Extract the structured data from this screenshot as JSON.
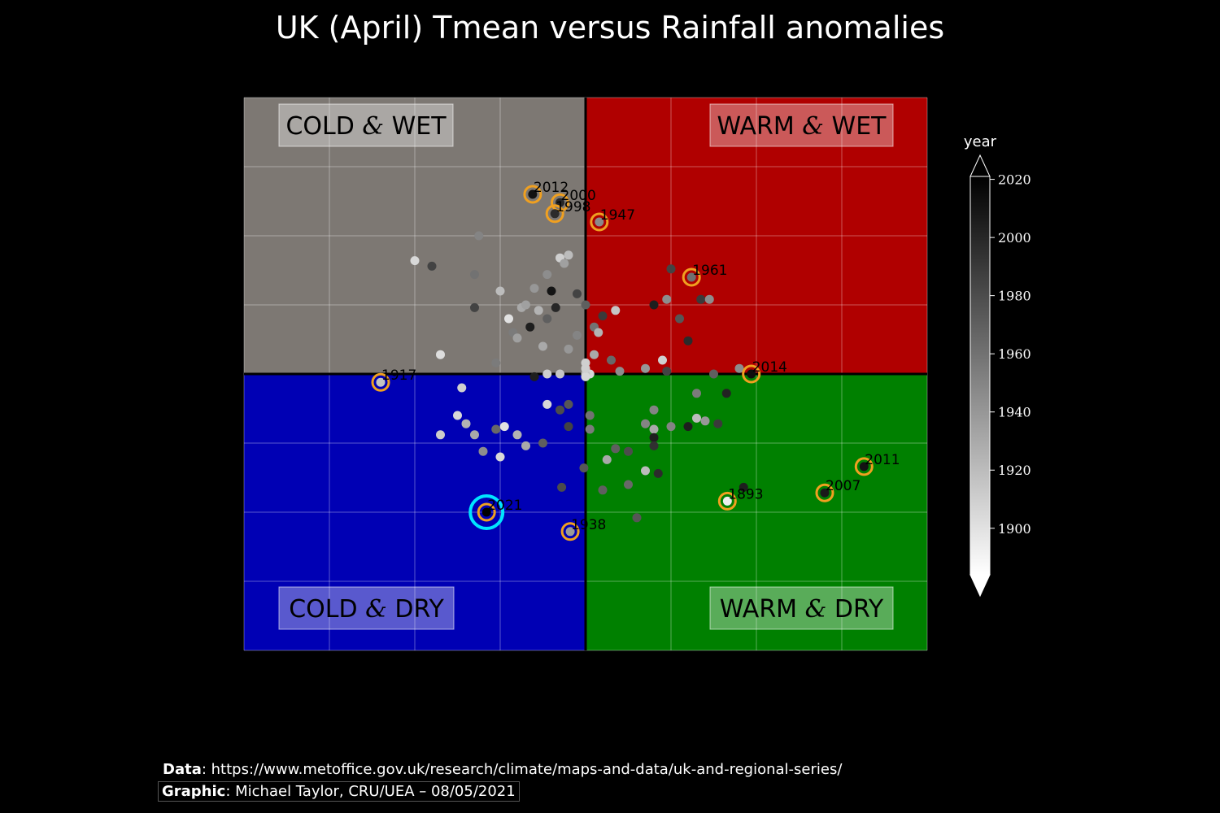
{
  "title": "UK (April) Tmean versus Rainfall anomalies",
  "quadrants": {
    "cold_wet": {
      "a": "COLD",
      "amp": "&",
      "b": "WET",
      "color": "#7d7873"
    },
    "warm_wet": {
      "a": "WARM",
      "amp": "&",
      "b": "WET",
      "color": "#b00000"
    },
    "cold_dry": {
      "a": "COLD",
      "amp": "&",
      "b": "DRY",
      "color": "#0000b4"
    },
    "warm_dry": {
      "a": "WARM",
      "amp": "&",
      "b": "DRY",
      "color": "#008000"
    }
  },
  "colorbar": {
    "label": "year",
    "ticks": [
      "2020",
      "2000",
      "1980",
      "1960",
      "1940",
      "1920",
      "1900"
    ],
    "range": [
      1884,
      2021
    ]
  },
  "footer": {
    "data_label": "Data",
    "data_text": ": https://www.metoffice.gov.uk/research/climate/maps-and-data/uk-and-regional-series/",
    "graphic_label": "Graphic",
    "graphic_text": ": Michael Taylor, CRU/UEA – 08/05/2021"
  },
  "chart_data": {
    "type": "scatter",
    "x_range": [
      -4,
      4
    ],
    "y_range": [
      -1,
      1
    ],
    "grid": true,
    "highlight_color": "#f0a020",
    "current_color": "#00e5ff",
    "labeled_points": [
      {
        "label": "2012",
        "x": -0.62,
        "y": 0.65,
        "year": 2012
      },
      {
        "label": "2000",
        "x": -0.3,
        "y": 0.62,
        "year": 2000
      },
      {
        "label": "1998",
        "x": -0.36,
        "y": 0.58,
        "year": 1998
      },
      {
        "label": "1947",
        "x": 0.16,
        "y": 0.55,
        "year": 1947
      },
      {
        "label": "1961",
        "x": 1.24,
        "y": 0.35,
        "year": 1961
      },
      {
        "label": "2014",
        "x": 1.94,
        "y": 0.0,
        "year": 2014
      },
      {
        "label": "1917",
        "x": -2.4,
        "y": -0.03,
        "year": 1917
      },
      {
        "label": "2011",
        "x": 3.26,
        "y": -0.335,
        "year": 2011
      },
      {
        "label": "2007",
        "x": 2.8,
        "y": -0.43,
        "year": 2007
      },
      {
        "label": "1893",
        "x": 1.66,
        "y": -0.46,
        "year": 1893
      },
      {
        "label": "1938",
        "x": -0.18,
        "y": -0.57,
        "year": 1938
      },
      {
        "label": "2021",
        "x": -1.16,
        "y": -0.5,
        "year": 2021,
        "current": true
      }
    ],
    "points": [
      {
        "x": -2.0,
        "y": 0.41,
        "year": 1905
      },
      {
        "x": -1.8,
        "y": 0.39,
        "year": 1985
      },
      {
        "x": -1.7,
        "y": 0.07,
        "year": 1902
      },
      {
        "x": -1.3,
        "y": 0.36,
        "year": 1960
      },
      {
        "x": -1.3,
        "y": 0.24,
        "year": 1985
      },
      {
        "x": -1.25,
        "y": 0.5,
        "year": 1950
      },
      {
        "x": -1.0,
        "y": 0.3,
        "year": 1920
      },
      {
        "x": -1.05,
        "y": 0.04,
        "year": 1955
      },
      {
        "x": -0.9,
        "y": 0.2,
        "year": 1900
      },
      {
        "x": -0.85,
        "y": 0.15,
        "year": 1955
      },
      {
        "x": -0.8,
        "y": 0.13,
        "year": 1935
      },
      {
        "x": -0.75,
        "y": 0.24,
        "year": 1930
      },
      {
        "x": -0.7,
        "y": 0.25,
        "year": 1935
      },
      {
        "x": -0.6,
        "y": 0.31,
        "year": 1940
      },
      {
        "x": -0.55,
        "y": 0.23,
        "year": 1925
      },
      {
        "x": -0.45,
        "y": 0.2,
        "year": 1970
      },
      {
        "x": -0.4,
        "y": 0.3,
        "year": 2010
      },
      {
        "x": -0.45,
        "y": 0.36,
        "year": 1945
      },
      {
        "x": -0.3,
        "y": 0.42,
        "year": 1910
      },
      {
        "x": -0.25,
        "y": 0.4,
        "year": 1935
      },
      {
        "x": -0.2,
        "y": 0.43,
        "year": 1920
      },
      {
        "x": -0.1,
        "y": 0.29,
        "year": 1985
      },
      {
        "x": 0.0,
        "y": 0.25,
        "year": 1970
      },
      {
        "x": -0.1,
        "y": 0.14,
        "year": 1950
      },
      {
        "x": 0.1,
        "y": 0.17,
        "year": 1960
      },
      {
        "x": 0.15,
        "y": 0.15,
        "year": 1925
      },
      {
        "x": 0.2,
        "y": 0.21,
        "year": 1990
      },
      {
        "x": 0.35,
        "y": 0.23,
        "year": 1915
      },
      {
        "x": 0.3,
        "y": 0.05,
        "year": 1965
      },
      {
        "x": 0.4,
        "y": 0.01,
        "year": 1945
      },
      {
        "x": 0.0,
        "y": 0.04,
        "year": 1910
      },
      {
        "x": 0.05,
        "y": 0.0,
        "year": 1905
      },
      {
        "x": 0.7,
        "y": 0.02,
        "year": 1940
      },
      {
        "x": 0.9,
        "y": 0.05,
        "year": 1910
      },
      {
        "x": 0.95,
        "y": 0.01,
        "year": 1985
      },
      {
        "x": 1.1,
        "y": 0.2,
        "year": 1975
      },
      {
        "x": 1.2,
        "y": 0.12,
        "year": 1998
      },
      {
        "x": 1.35,
        "y": 0.27,
        "year": 1990
      },
      {
        "x": 1.45,
        "y": 0.27,
        "year": 1945
      },
      {
        "x": 0.8,
        "y": 0.25,
        "year": 2005
      },
      {
        "x": 0.95,
        "y": 0.27,
        "year": 1945
      },
      {
        "x": 1.0,
        "y": 0.38,
        "year": 1985
      },
      {
        "x": -0.65,
        "y": 0.17,
        "year": 2005
      },
      {
        "x": -0.35,
        "y": 0.24,
        "year": 2000
      },
      {
        "x": -0.5,
        "y": 0.1,
        "year": 1930
      },
      {
        "x": -0.3,
        "y": 0.0,
        "year": 1915
      },
      {
        "x": -0.2,
        "y": 0.09,
        "year": 1940
      },
      {
        "x": 0.1,
        "y": 0.07,
        "year": 1930
      },
      {
        "x": -1.45,
        "y": -0.05,
        "year": 1910
      },
      {
        "x": -1.4,
        "y": -0.18,
        "year": 1925
      },
      {
        "x": -1.3,
        "y": -0.22,
        "year": 1930
      },
      {
        "x": -1.2,
        "y": -0.28,
        "year": 1945
      },
      {
        "x": -1.05,
        "y": -0.2,
        "year": 1965
      },
      {
        "x": -0.95,
        "y": -0.19,
        "year": 1900
      },
      {
        "x": -0.8,
        "y": -0.22,
        "year": 1925
      },
      {
        "x": -0.7,
        "y": -0.26,
        "year": 1930
      },
      {
        "x": -0.5,
        "y": -0.25,
        "year": 1970
      },
      {
        "x": -0.6,
        "y": -0.01,
        "year": 2005
      },
      {
        "x": -0.45,
        "y": 0.0,
        "year": 1910
      },
      {
        "x": -0.45,
        "y": -0.11,
        "year": 1905
      },
      {
        "x": -0.3,
        "y": -0.13,
        "year": 1980
      },
      {
        "x": -0.2,
        "y": -0.11,
        "year": 1975
      },
      {
        "x": -0.2,
        "y": -0.19,
        "year": 1985
      },
      {
        "x": -0.28,
        "y": -0.41,
        "year": 1980
      },
      {
        "x": -0.02,
        "y": -0.34,
        "year": 1975
      },
      {
        "x": -1.7,
        "y": -0.22,
        "year": 1912
      },
      {
        "x": -1.5,
        "y": -0.15,
        "year": 1905
      },
      {
        "x": -1.0,
        "y": -0.3,
        "year": 1905
      },
      {
        "x": 0.25,
        "y": -0.31,
        "year": 1930
      },
      {
        "x": 0.2,
        "y": -0.42,
        "year": 1970
      },
      {
        "x": 0.5,
        "y": -0.28,
        "year": 1980
      },
      {
        "x": 0.5,
        "y": -0.4,
        "year": 1965
      },
      {
        "x": 0.6,
        "y": -0.52,
        "year": 1975
      },
      {
        "x": 0.7,
        "y": -0.35,
        "year": 1920
      },
      {
        "x": 0.85,
        "y": -0.36,
        "year": 1998
      },
      {
        "x": 0.7,
        "y": -0.18,
        "year": 1950
      },
      {
        "x": 0.8,
        "y": -0.2,
        "year": 1930
      },
      {
        "x": 0.8,
        "y": -0.23,
        "year": 2005
      },
      {
        "x": 0.8,
        "y": -0.26,
        "year": 1995
      },
      {
        "x": 0.8,
        "y": -0.13,
        "year": 1950
      },
      {
        "x": 1.0,
        "y": -0.19,
        "year": 1950
      },
      {
        "x": 1.2,
        "y": -0.19,
        "year": 2005
      },
      {
        "x": 1.3,
        "y": -0.16,
        "year": 1920
      },
      {
        "x": 1.4,
        "y": -0.17,
        "year": 1940
      },
      {
        "x": 1.3,
        "y": -0.07,
        "year": 1955
      },
      {
        "x": 1.65,
        "y": -0.07,
        "year": 2003
      },
      {
        "x": 1.55,
        "y": -0.18,
        "year": 1990
      },
      {
        "x": 1.85,
        "y": -0.41,
        "year": 2005
      },
      {
        "x": 1.5,
        "y": 0.0,
        "year": 1970
      },
      {
        "x": 1.8,
        "y": 0.02,
        "year": 1945
      },
      {
        "x": 0.05,
        "y": -0.2,
        "year": 1955
      },
      {
        "x": 0.05,
        "y": -0.15,
        "year": 1960
      },
      {
        "x": 0.35,
        "y": -0.27,
        "year": 1970
      },
      {
        "x": 0.0,
        "y": 0.0,
        "year": 1915
      },
      {
        "x": 0.0,
        "y": -0.01,
        "year": 1905
      },
      {
        "x": 0.0,
        "y": 0.02,
        "year": 1910
      }
    ]
  }
}
